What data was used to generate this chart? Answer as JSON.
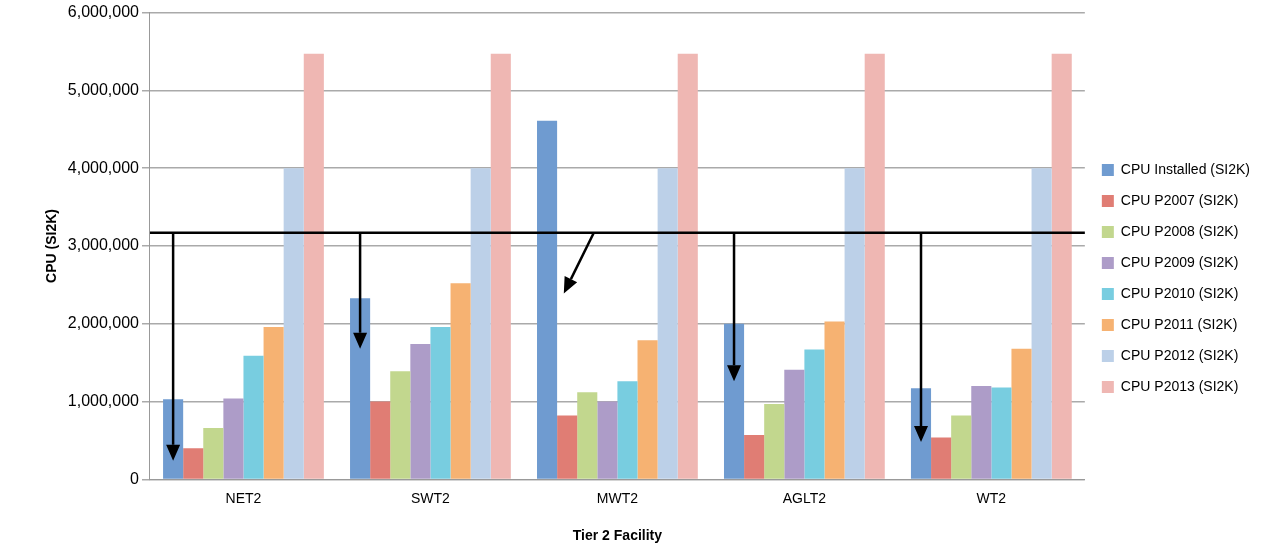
{
  "chart_data": {
    "type": "bar",
    "xlabel": "Tier 2 Facility",
    "ylabel": "CPU (SI2K)",
    "categories": [
      "NET2",
      "SWT2",
      "MWT2",
      "AGLT2",
      "WT2"
    ],
    "series": [
      {
        "name": "CPU Installed (SI2K)",
        "color": "#6f9bd0",
        "values": [
          1030000,
          2330000,
          4610000,
          2000000,
          1170000
        ]
      },
      {
        "name": "CPU P2007 (SI2K)",
        "color": "#e07d74",
        "values": [
          400000,
          1000000,
          820000,
          570000,
          540000
        ]
      },
      {
        "name": "CPU P2008 (SI2K)",
        "color": "#c2d78e",
        "values": [
          660000,
          1390000,
          1120000,
          970000,
          820000
        ]
      },
      {
        "name": "CPU P2009 (SI2K)",
        "color": "#ad9cc8",
        "values": [
          1040000,
          1740000,
          1000000,
          1410000,
          1200000
        ]
      },
      {
        "name": "CPU P2010 (SI2K)",
        "color": "#78cde0",
        "values": [
          1590000,
          1960000,
          1260000,
          1670000,
          1180000
        ]
      },
      {
        "name": "CPU P2011 (SI2K)",
        "color": "#f6b272",
        "values": [
          1960000,
          2520000,
          1790000,
          2030000,
          1680000
        ]
      },
      {
        "name": "CPU P2012 (SI2K)",
        "color": "#bcd0e8",
        "values": [
          4000000,
          4000000,
          4000000,
          4000000,
          4000000
        ]
      },
      {
        "name": "CPU P2013 (SI2K)",
        "color": "#efb7b3",
        "values": [
          5470000,
          5470000,
          5470000,
          5470000,
          5470000
        ]
      }
    ],
    "ylim": [
      0,
      6000000
    ],
    "yticks": [
      {
        "value": 0,
        "label": "0"
      },
      {
        "value": 1000000,
        "label": "1,000,000"
      },
      {
        "value": 2000000,
        "label": "2,000,000"
      },
      {
        "value": 3000000,
        "label": "3,000,000"
      },
      {
        "value": 4000000,
        "label": "4,000,000"
      },
      {
        "value": 5000000,
        "label": "5,000,000"
      },
      {
        "value": 6000000,
        "label": "6,000,000"
      }
    ],
    "ref_lines": [
      {
        "axis": "y",
        "value": 3170000,
        "color": "#000000",
        "line_style": "solid"
      }
    ],
    "grid": "y",
    "legend": "right"
  }
}
